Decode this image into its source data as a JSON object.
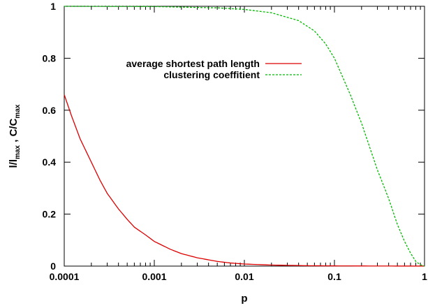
{
  "chart_data": {
    "type": "line",
    "xlabel": "p",
    "ylabel": {
      "part1": "l/l",
      "part1_sub": "max",
      "separator": " , ",
      "part2": "C/C",
      "part2_sub": "max"
    },
    "xscale": "log",
    "xlim": [
      0.0001,
      1
    ],
    "ylim": [
      0,
      1
    ],
    "x_ticks": [
      {
        "value": 0.0001,
        "label": "0.0001"
      },
      {
        "value": 0.001,
        "label": "0.001"
      },
      {
        "value": 0.01,
        "label": "0.01"
      },
      {
        "value": 0.1,
        "label": "0.1"
      },
      {
        "value": 1,
        "label": "1"
      }
    ],
    "y_ticks": [
      {
        "value": 0,
        "label": "0"
      },
      {
        "value": 0.2,
        "label": "0.2"
      },
      {
        "value": 0.4,
        "label": "0.4"
      },
      {
        "value": 0.6,
        "label": "0.6"
      },
      {
        "value": 0.8,
        "label": "0.8"
      },
      {
        "value": 1,
        "label": "1"
      }
    ],
    "grid": false,
    "legend_position": "top-center",
    "series": [
      {
        "name": "average shortest path length",
        "color": "#dd0000",
        "dash": "solid",
        "points": [
          [
            0.0001,
            0.66
          ],
          [
            0.00012,
            0.58
          ],
          [
            0.00015,
            0.49
          ],
          [
            0.0002,
            0.4
          ],
          [
            0.00025,
            0.33
          ],
          [
            0.0003,
            0.28
          ],
          [
            0.0004,
            0.22
          ],
          [
            0.0005,
            0.18
          ],
          [
            0.0006,
            0.15
          ],
          [
            0.0008,
            0.12
          ],
          [
            0.001,
            0.095
          ],
          [
            0.0015,
            0.065
          ],
          [
            0.002,
            0.048
          ],
          [
            0.003,
            0.032
          ],
          [
            0.005,
            0.018
          ],
          [
            0.007,
            0.012
          ],
          [
            0.01,
            0.008
          ],
          [
            0.02,
            0.004
          ],
          [
            0.05,
            0.0015
          ],
          [
            0.1,
            0.0008
          ],
          [
            0.3,
            0.0003
          ],
          [
            1,
            0.0001
          ]
        ]
      },
      {
        "name": "clustering coeffitient",
        "color": "#00bb00",
        "dash": "dashed",
        "points": [
          [
            0.0001,
            1.0
          ],
          [
            0.001,
            0.999
          ],
          [
            0.005,
            0.994
          ],
          [
            0.01,
            0.988
          ],
          [
            0.02,
            0.975
          ],
          [
            0.04,
            0.945
          ],
          [
            0.06,
            0.905
          ],
          [
            0.08,
            0.855
          ],
          [
            0.1,
            0.8
          ],
          [
            0.15,
            0.66
          ],
          [
            0.2,
            0.55
          ],
          [
            0.3,
            0.37
          ],
          [
            0.4,
            0.26
          ],
          [
            0.5,
            0.16
          ],
          [
            0.6,
            0.095
          ],
          [
            0.7,
            0.05
          ],
          [
            0.8,
            0.018
          ],
          [
            0.9,
            0.005
          ],
          [
            1,
            0.0
          ]
        ]
      }
    ]
  }
}
